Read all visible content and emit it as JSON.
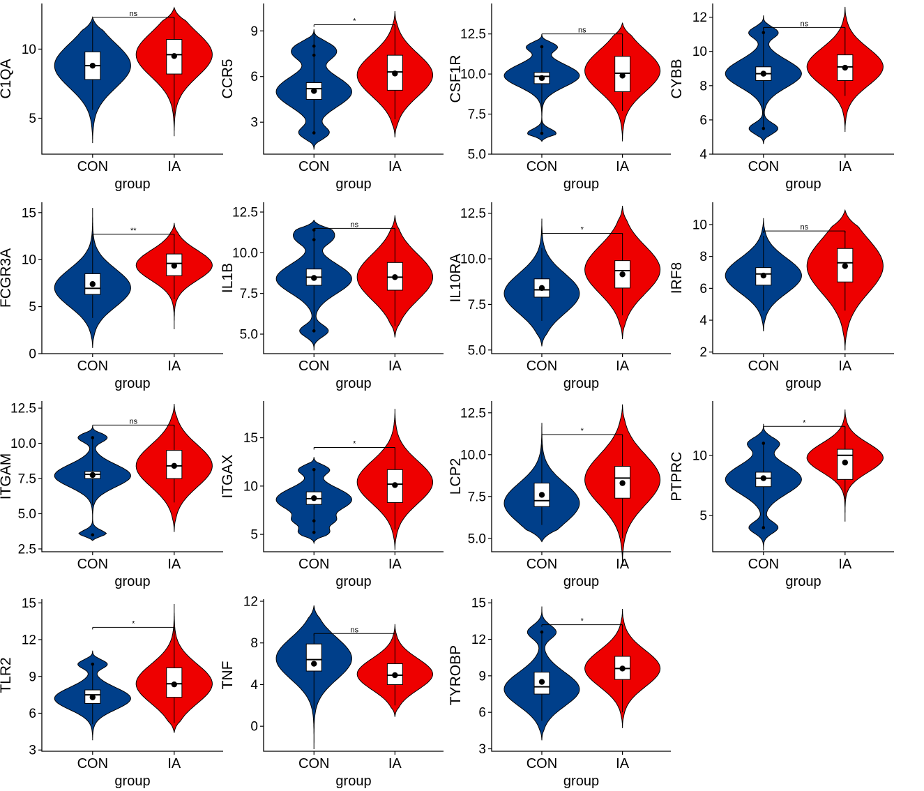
{
  "colors": {
    "CON": "#003F8A",
    "IA": "#EE0000"
  },
  "chart_data": [
    {
      "type": "violin",
      "ylabel": "C1QA",
      "xlabel": "group",
      "categories": [
        "CON",
        "IA"
      ],
      "yticks": [
        5,
        10
      ],
      "ylim": [
        2.4,
        13.3
      ],
      "signif": "ns",
      "series": [
        {
          "name": "CON",
          "min": 3.2,
          "max": 12.3,
          "center": 8.8,
          "spread": 1.6,
          "q1": 7.8,
          "median": 8.8,
          "q3": 9.8,
          "mean": 8.8,
          "whisker_low": 5.6,
          "whisker_high": 12.0,
          "outliers": []
        },
        {
          "name": "IA",
          "min": 3.7,
          "max": 13.0,
          "center": 9.6,
          "spread": 1.6,
          "q1": 8.2,
          "median": 9.6,
          "q3": 10.7,
          "mean": 9.5,
          "whisker_low": 5.2,
          "whisker_high": 12.3,
          "outliers": []
        }
      ]
    },
    {
      "type": "violin",
      "ylabel": "CCR5",
      "xlabel": "group",
      "categories": [
        "CON",
        "IA"
      ],
      "yticks": [
        3,
        6,
        9
      ],
      "ylim": [
        0.9,
        10.8
      ],
      "signif": "*",
      "series": [
        {
          "name": "CON",
          "min": 1.2,
          "max": 9.1,
          "center": 5.0,
          "spread": 1.0,
          "q1": 4.5,
          "median": 5.2,
          "q3": 5.6,
          "mean": 5.05,
          "whisker_low": 2.3,
          "whisker_high": 9.0,
          "outliers": [
            2.3,
            7.4,
            8.0
          ]
        },
        {
          "name": "IA",
          "min": 2.0,
          "max": 10.3,
          "center": 6.1,
          "spread": 1.4,
          "q1": 5.1,
          "median": 6.3,
          "q3": 7.4,
          "mean": 6.2,
          "whisker_low": 3.2,
          "whisker_high": 9.4,
          "outliers": []
        }
      ]
    },
    {
      "type": "violin",
      "ylabel": "CSF1R",
      "xlabel": "group",
      "categories": [
        "CON",
        "IA"
      ],
      "yticks": [
        5.0,
        7.5,
        10.0,
        12.5
      ],
      "ylim": [
        5.0,
        14.4
      ],
      "signif": "ns",
      "series": [
        {
          "name": "CON",
          "min": 5.8,
          "max": 12.5,
          "center": 9.9,
          "spread": 0.7,
          "q1": 9.4,
          "median": 9.85,
          "q3": 10.1,
          "mean": 9.75,
          "whisker_low": 6.3,
          "whisker_high": 11.8,
          "outliers": [
            6.3,
            11.7
          ]
        },
        {
          "name": "IA",
          "min": 5.8,
          "max": 13.2,
          "center": 10.2,
          "spread": 1.3,
          "q1": 8.9,
          "median": 10.05,
          "q3": 11.1,
          "mean": 9.9,
          "whisker_low": 7.7,
          "whisker_high": 12.5,
          "outliers": []
        }
      ]
    },
    {
      "type": "violin",
      "ylabel": "CYBB",
      "xlabel": "group",
      "categories": [
        "CON",
        "IA"
      ],
      "yticks": [
        4,
        6,
        8,
        10,
        12
      ],
      "ylim": [
        4,
        12.8
      ],
      "signif": "ns",
      "series": [
        {
          "name": "CON",
          "min": 4.6,
          "max": 12.1,
          "center": 8.7,
          "spread": 0.8,
          "q1": 8.3,
          "median": 8.7,
          "q3": 9.1,
          "mean": 8.7,
          "whisker_low": 5.5,
          "whisker_high": 11.4,
          "outliers": [
            5.5,
            11.1
          ]
        },
        {
          "name": "IA",
          "min": 5.3,
          "max": 12.6,
          "center": 9.1,
          "spread": 1.1,
          "q1": 8.3,
          "median": 9.1,
          "q3": 9.8,
          "mean": 9.05,
          "whisker_low": 7.4,
          "whisker_high": 11.4,
          "outliers": []
        }
      ]
    },
    {
      "type": "violin",
      "ylabel": "FCGR3A",
      "xlabel": "group",
      "categories": [
        "CON",
        "IA"
      ],
      "yticks": [
        0,
        5,
        10,
        15
      ],
      "ylim": [
        0,
        16.1
      ],
      "signif": "**",
      "series": [
        {
          "name": "CON",
          "min": 0.6,
          "max": 15.5,
          "center": 7.0,
          "spread": 2.0,
          "q1": 6.3,
          "median": 6.95,
          "q3": 8.5,
          "mean": 7.4,
          "whisker_low": 3.8,
          "whisker_high": 12.7,
          "outliers": []
        },
        {
          "name": "IA",
          "min": 2.6,
          "max": 13.9,
          "center": 9.4,
          "spread": 1.6,
          "q1": 8.3,
          "median": 9.6,
          "q3": 10.6,
          "mean": 9.35,
          "whisker_low": 5.8,
          "whisker_high": 12.7,
          "outliers": []
        }
      ]
    },
    {
      "type": "violin",
      "ylabel": "IL1B",
      "xlabel": "group",
      "categories": [
        "CON",
        "IA"
      ],
      "yticks": [
        5.0,
        7.5,
        10.0,
        12.5
      ],
      "ylim": [
        3.8,
        13.1
      ],
      "signif": "ns",
      "series": [
        {
          "name": "CON",
          "min": 4.0,
          "max": 12.0,
          "center": 8.4,
          "spread": 0.9,
          "q1": 8.0,
          "median": 8.5,
          "q3": 9.0,
          "mean": 8.45,
          "whisker_low": 5.2,
          "whisker_high": 11.4,
          "outliers": [
            5.2,
            10.8,
            11.4
          ]
        },
        {
          "name": "IA",
          "min": 4.8,
          "max": 12.3,
          "center": 8.5,
          "spread": 1.4,
          "q1": 7.7,
          "median": 8.5,
          "q3": 9.4,
          "mean": 8.5,
          "whisker_low": 5.5,
          "whisker_high": 11.5,
          "outliers": []
        }
      ]
    },
    {
      "type": "violin",
      "ylabel": "IL10RA",
      "xlabel": "group",
      "categories": [
        "CON",
        "IA"
      ],
      "yticks": [
        5.0,
        7.5,
        10.0,
        12.5
      ],
      "ylim": [
        4.8,
        13.1
      ],
      "signif": "*",
      "series": [
        {
          "name": "CON",
          "min": 5.2,
          "max": 12.2,
          "center": 8.1,
          "spread": 1.1,
          "q1": 7.9,
          "median": 8.3,
          "q3": 8.9,
          "mean": 8.4,
          "whisker_low": 6.6,
          "whisker_high": 10.6,
          "outliers": []
        },
        {
          "name": "IA",
          "min": 5.6,
          "max": 12.9,
          "center": 9.4,
          "spread": 1.3,
          "q1": 8.4,
          "median": 9.35,
          "q3": 9.9,
          "mean": 9.15,
          "whisker_low": 6.9,
          "whisker_high": 11.4,
          "outliers": []
        }
      ]
    },
    {
      "type": "violin",
      "ylabel": "IRF8",
      "xlabel": "group",
      "categories": [
        "CON",
        "IA"
      ],
      "yticks": [
        2,
        4,
        6,
        8,
        10
      ],
      "ylim": [
        1.9,
        11.4
      ],
      "signif": "ns",
      "series": [
        {
          "name": "CON",
          "min": 3.3,
          "max": 10.4,
          "center": 6.8,
          "spread": 1.1,
          "q1": 6.2,
          "median": 6.9,
          "q3": 7.3,
          "mean": 6.8,
          "whisker_low": 4.6,
          "whisker_high": 9.3,
          "outliers": []
        },
        {
          "name": "IA",
          "min": 2.1,
          "max": 10.9,
          "center": 7.4,
          "spread": 1.7,
          "q1": 6.4,
          "median": 7.6,
          "q3": 8.5,
          "mean": 7.4,
          "whisker_low": 4.6,
          "whisker_high": 9.6,
          "outliers": []
        }
      ]
    },
    {
      "type": "violin",
      "ylabel": "ITGAM",
      "xlabel": "group",
      "categories": [
        "CON",
        "IA"
      ],
      "yticks": [
        2.5,
        5.0,
        7.5,
        10.0,
        12.5
      ],
      "ylim": [
        2.3,
        13.0
      ],
      "signif": "ns",
      "series": [
        {
          "name": "CON",
          "min": 3.1,
          "max": 11.2,
          "center": 7.7,
          "spread": 0.8,
          "q1": 7.5,
          "median": 7.8,
          "q3": 8.0,
          "mean": 7.75,
          "whisker_low": 5.6,
          "whisker_high": 10.5,
          "outliers": [
            3.5,
            10.4
          ]
        },
        {
          "name": "IA",
          "min": 3.7,
          "max": 12.8,
          "center": 8.4,
          "spread": 1.5,
          "q1": 7.5,
          "median": 8.4,
          "q3": 9.5,
          "mean": 8.4,
          "whisker_low": 5.8,
          "whisker_high": 11.3,
          "outliers": []
        }
      ]
    },
    {
      "type": "violin",
      "ylabel": "ITGAX",
      "xlabel": "group",
      "categories": [
        "CON",
        "IA"
      ],
      "yticks": [
        5,
        10,
        15
      ],
      "ylim": [
        3.2,
        18.8
      ],
      "signif": "*",
      "series": [
        {
          "name": "CON",
          "min": 4.1,
          "max": 13.0,
          "center": 8.6,
          "spread": 1.2,
          "q1": 8.1,
          "median": 8.7,
          "q3": 9.4,
          "mean": 8.75,
          "whisker_low": 5.1,
          "whisker_high": 11.8,
          "outliers": [
            5.2,
            6.4,
            11.7
          ]
        },
        {
          "name": "IA",
          "min": 3.4,
          "max": 18.0,
          "center": 10.4,
          "spread": 2.2,
          "q1": 8.3,
          "median": 10.2,
          "q3": 11.7,
          "mean": 10.1,
          "whisker_low": 5.5,
          "whisker_high": 14.0,
          "outliers": []
        }
      ]
    },
    {
      "type": "violin",
      "ylabel": "LCP2",
      "xlabel": "group",
      "categories": [
        "CON",
        "IA"
      ],
      "yticks": [
        5.0,
        7.5,
        10.0,
        12.5
      ],
      "ylim": [
        4.2,
        13.2
      ],
      "signif": "*",
      "series": [
        {
          "name": "CON",
          "min": 4.8,
          "max": 11.9,
          "center": 7.1,
          "spread": 1.2,
          "q1": 6.9,
          "median": 7.25,
          "q3": 8.3,
          "mean": 7.6,
          "whisker_low": 5.8,
          "whisker_high": 10.6,
          "outliers": []
        },
        {
          "name": "IA",
          "min": 3.5,
          "max": 13.0,
          "center": 8.5,
          "spread": 1.5,
          "q1": 7.4,
          "median": 8.6,
          "q3": 9.3,
          "mean": 8.3,
          "whisker_low": 5.0,
          "whisker_high": 11.2,
          "outliers": []
        }
      ]
    },
    {
      "type": "violin",
      "ylabel": "PTPRC",
      "xlabel": "group",
      "categories": [
        "CON",
        "IA"
      ],
      "yticks": [
        5,
        10
      ],
      "ylim": [
        2.0,
        14.5
      ],
      "signif": "*",
      "series": [
        {
          "name": "CON",
          "min": 2.1,
          "max": 12.6,
          "center": 8.0,
          "spread": 1.2,
          "q1": 7.4,
          "median": 8.1,
          "q3": 8.6,
          "mean": 8.1,
          "whisker_low": 4.0,
          "whisker_high": 11.0,
          "outliers": [
            4.0,
            11.0
          ]
        },
        {
          "name": "IA",
          "min": 4.5,
          "max": 13.8,
          "center": 9.8,
          "spread": 1.2,
          "q1": 8.0,
          "median": 10.0,
          "q3": 10.5,
          "mean": 9.4,
          "whisker_low": 6.4,
          "whisker_high": 12.4,
          "outliers": []
        }
      ]
    },
    {
      "type": "violin",
      "ylabel": "TLR2",
      "xlabel": "group",
      "categories": [
        "CON",
        "IA"
      ],
      "yticks": [
        3,
        6,
        9,
        12,
        15
      ],
      "ylim": [
        2.9,
        15.3
      ],
      "signif": "*",
      "series": [
        {
          "name": "CON",
          "min": 3.8,
          "max": 11.1,
          "center": 7.2,
          "spread": 0.9,
          "q1": 6.8,
          "median": 7.5,
          "q3": 7.9,
          "mean": 7.3,
          "whisker_low": 5.1,
          "whisker_high": 10.0,
          "outliers": [
            10.0
          ]
        },
        {
          "name": "IA",
          "min": 4.4,
          "max": 14.9,
          "center": 8.4,
          "spread": 1.6,
          "q1": 7.3,
          "median": 8.4,
          "q3": 9.7,
          "mean": 8.35,
          "whisker_low": 5.2,
          "whisker_high": 13.0,
          "outliers": []
        }
      ]
    },
    {
      "type": "violin",
      "ylabel": "TNF",
      "xlabel": "group",
      "categories": [
        "CON",
        "IA"
      ],
      "yticks": [
        0,
        4,
        8,
        12
      ],
      "ylim": [
        -2.4,
        12.2
      ],
      "signif": "ns",
      "series": [
        {
          "name": "CON",
          "min": -2.2,
          "max": 11.6,
          "center": 6.5,
          "spread": 2.0,
          "q1": 5.3,
          "median": 6.4,
          "q3": 7.9,
          "mean": 6.0,
          "whisker_low": 1.6,
          "whisker_high": 8.9,
          "outliers": []
        },
        {
          "name": "IA",
          "min": 0.9,
          "max": 9.8,
          "center": 5.0,
          "spread": 1.5,
          "q1": 4.0,
          "median": 4.9,
          "q3": 6.0,
          "mean": 4.9,
          "whisker_low": 2.0,
          "whisker_high": 8.9,
          "outliers": []
        }
      ]
    },
    {
      "type": "violin",
      "ylabel": "TYROBP",
      "xlabel": "group",
      "categories": [
        "CON",
        "IA"
      ],
      "yticks": [
        3,
        6,
        9,
        12,
        15
      ],
      "ylim": [
        2.8,
        15.3
      ],
      "signif": "*",
      "series": [
        {
          "name": "CON",
          "min": 3.7,
          "max": 14.7,
          "center": 7.9,
          "spread": 1.4,
          "q1": 7.5,
          "median": 8.1,
          "q3": 9.3,
          "mean": 8.5,
          "whisker_low": 5.3,
          "whisker_high": 12.6,
          "outliers": [
            12.6
          ]
        },
        {
          "name": "IA",
          "min": 4.7,
          "max": 14.5,
          "center": 9.6,
          "spread": 1.5,
          "q1": 8.7,
          "median": 9.6,
          "q3": 10.6,
          "mean": 9.6,
          "whisker_low": 6.0,
          "whisker_high": 13.2,
          "outliers": []
        }
      ]
    }
  ]
}
